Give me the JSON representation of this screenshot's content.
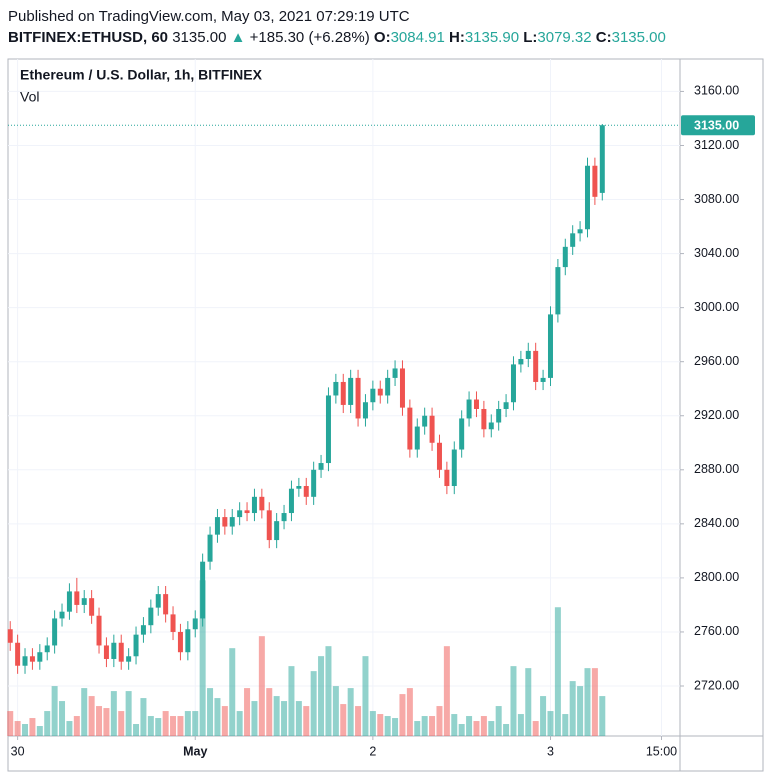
{
  "header": {
    "published": "Published on TradingView.com, May 03, 2021 07:29:19 UTC",
    "symbol": "BITFINEX:ETHUSD, 60",
    "price": "3135.00",
    "change": "+185.30 (+6.28%)",
    "o_label": "O:",
    "o": "3084.91",
    "h_label": "H:",
    "h": "3135.90",
    "l_label": "L:",
    "l": "3079.32",
    "c_label": "C:",
    "c": "3135.00"
  },
  "chart_data": {
    "type": "candlestick",
    "title": "Ethereum / U.S. Dollar, 1h, BITFINEX",
    "volume_label": "Vol",
    "up_color": "#26a69a",
    "down_color": "#ef5350",
    "open": [
      2762,
      2752,
      2735,
      2742,
      2738,
      2745,
      2750,
      2770,
      2775,
      2790,
      2780,
      2785,
      2772,
      2750,
      2740,
      2752,
      2738,
      2742,
      2758,
      2765,
      2778,
      2788,
      2773,
      2760,
      2745,
      2762,
      2770,
      2812,
      2832,
      2845,
      2838,
      2845,
      2850,
      2848,
      2860,
      2850,
      2828,
      2842,
      2848,
      2866,
      2868,
      2860,
      2880,
      2885,
      2935,
      2945,
      2928,
      2948,
      2918,
      2930,
      2940,
      2935,
      2948,
      2955,
      2926,
      2895,
      2912,
      2920,
      2900,
      2880,
      2868,
      2895,
      2918,
      2932,
      2925,
      2910,
      2915,
      2925,
      2930,
      2958,
      2962,
      2968,
      2945,
      2948,
      2995,
      3030,
      3045,
      3055,
      3058,
      3105,
      3084.91
    ],
    "high": [
      2768,
      2758,
      2748,
      2748,
      2751,
      2756,
      2776,
      2781,
      2796,
      2800,
      2791,
      2791,
      2778,
      2756,
      2758,
      2758,
      2748,
      2764,
      2771,
      2784,
      2794,
      2794,
      2779,
      2766,
      2768,
      2776,
      2818,
      2838,
      2851,
      2851,
      2851,
      2856,
      2856,
      2866,
      2866,
      2856,
      2848,
      2854,
      2872,
      2874,
      2874,
      2886,
      2891,
      2941,
      2951,
      2951,
      2954,
      2954,
      2936,
      2946,
      2946,
      2954,
      2961,
      2961,
      2932,
      2918,
      2926,
      2926,
      2906,
      2886,
      2901,
      2924,
      2938,
      2938,
      2931,
      2921,
      2931,
      2936,
      2964,
      2968,
      2974,
      2974,
      2954,
      3001,
      3036,
      3051,
      3061,
      3064,
      3111,
      3111,
      3135.9
    ],
    "low": [
      2746,
      2729,
      2729,
      2732,
      2732,
      2739,
      2744,
      2764,
      2769,
      2774,
      2774,
      2766,
      2744,
      2734,
      2734,
      2732,
      2732,
      2736,
      2752,
      2759,
      2772,
      2767,
      2754,
      2739,
      2739,
      2756,
      2764,
      2806,
      2826,
      2832,
      2832,
      2839,
      2842,
      2842,
      2844,
      2822,
      2822,
      2836,
      2842,
      2860,
      2854,
      2854,
      2874,
      2879,
      2929,
      2922,
      2922,
      2912,
      2912,
      2924,
      2929,
      2929,
      2942,
      2920,
      2889,
      2889,
      2906,
      2894,
      2874,
      2862,
      2862,
      2889,
      2912,
      2919,
      2904,
      2904,
      2909,
      2919,
      2924,
      2952,
      2956,
      2939,
      2939,
      2942,
      2989,
      3024,
      3039,
      3049,
      3052,
      3076,
      3079.32
    ],
    "close": [
      2752,
      2735,
      2742,
      2738,
      2745,
      2750,
      2770,
      2775,
      2790,
      2780,
      2785,
      2772,
      2750,
      2740,
      2752,
      2738,
      2742,
      2758,
      2765,
      2778,
      2788,
      2773,
      2760,
      2745,
      2762,
      2770,
      2812,
      2832,
      2845,
      2838,
      2845,
      2850,
      2848,
      2860,
      2850,
      2828,
      2842,
      2848,
      2866,
      2868,
      2860,
      2880,
      2885,
      2935,
      2945,
      2928,
      2948,
      2918,
      2930,
      2940,
      2935,
      2948,
      2955,
      2926,
      2895,
      2912,
      2920,
      2900,
      2880,
      2868,
      2895,
      2918,
      2932,
      2925,
      2910,
      2915,
      2925,
      2930,
      2958,
      2962,
      2968,
      2945,
      2948,
      2995,
      3030,
      3045,
      3055,
      3058,
      3105,
      3082,
      3135
    ],
    "volume": [
      25,
      15,
      12,
      18,
      10,
      25,
      50,
      35,
      15,
      20,
      48,
      40,
      30,
      28,
      45,
      25,
      45,
      12,
      38,
      20,
      18,
      25,
      20,
      20,
      25,
      25,
      156,
      48,
      38,
      30,
      88,
      25,
      48,
      35,
      100,
      48,
      40,
      35,
      70,
      35,
      30,
      65,
      80,
      90,
      50,
      32,
      48,
      30,
      80,
      25,
      22,
      20,
      18,
      42,
      48,
      15,
      20,
      20,
      30,
      90,
      22,
      12,
      20,
      15,
      20,
      15,
      30,
      12,
      70,
      22,
      68,
      15,
      40,
      25,
      129,
      22,
      55,
      50,
      68,
      68,
      40
    ],
    "last_price": {
      "value": 3135,
      "label": "3135.00"
    },
    "ylim": [
      2683,
      3184
    ],
    "yticks": [
      {
        "value": 2720,
        "label": "2720.00"
      },
      {
        "value": 2760,
        "label": "2760.00"
      },
      {
        "value": 2800,
        "label": "2800.00"
      },
      {
        "value": 2840,
        "label": "2840.00"
      },
      {
        "value": 2880,
        "label": "2880.00"
      },
      {
        "value": 2920,
        "label": "2920.00"
      },
      {
        "value": 2960,
        "label": "2960.00"
      },
      {
        "value": 3000,
        "label": "3000.00"
      },
      {
        "value": 3040,
        "label": "3040.00"
      },
      {
        "value": 3080,
        "label": "3080.00"
      },
      {
        "value": 3120,
        "label": "3120.00"
      },
      {
        "value": 3160,
        "label": "3160.00"
      }
    ],
    "xlim": [
      -0.3,
      90.5
    ],
    "xticks": [
      {
        "value": 1,
        "label": "30"
      },
      {
        "value": 25,
        "label": "May"
      },
      {
        "value": 49,
        "label": "2"
      },
      {
        "value": 73,
        "label": "3"
      },
      {
        "value": 88,
        "label": "15:00"
      }
    ],
    "grid": true
  }
}
